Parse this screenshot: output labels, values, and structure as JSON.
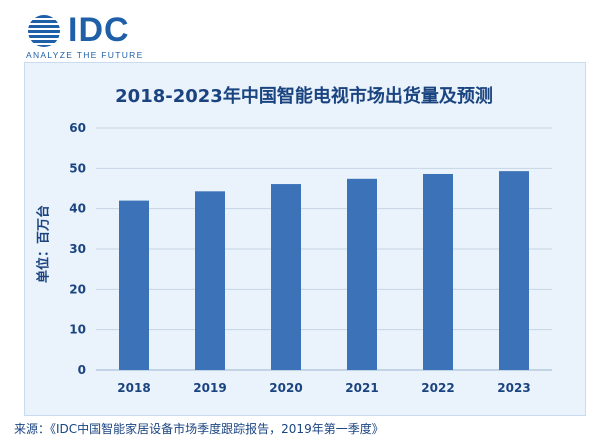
{
  "brand": {
    "name": "IDC",
    "tagline": "ANALYZE THE FUTURE",
    "color": "#1f5fa8"
  },
  "chart_data": {
    "type": "bar",
    "title": "2018-2023年中国智能电视市场出货量及预测",
    "ylabel": "单位：百万台",
    "xlabel": "",
    "categories": [
      "2018",
      "2019",
      "2020",
      "2021",
      "2022",
      "2023"
    ],
    "values": [
      42,
      44.3,
      46.1,
      47.4,
      48.6,
      49.3
    ],
    "ylim": [
      0,
      60
    ],
    "yticks": [
      "0",
      "10",
      "20",
      "30",
      "40",
      "50",
      "60"
    ],
    "grid": true,
    "legend": "none",
    "bar_color": "#3b72b8",
    "background_color": "#eaf2fb"
  },
  "footer": {
    "source": "来源：《IDC中国智能家居设备市场季度跟踪报告，2019年第一季度》"
  }
}
